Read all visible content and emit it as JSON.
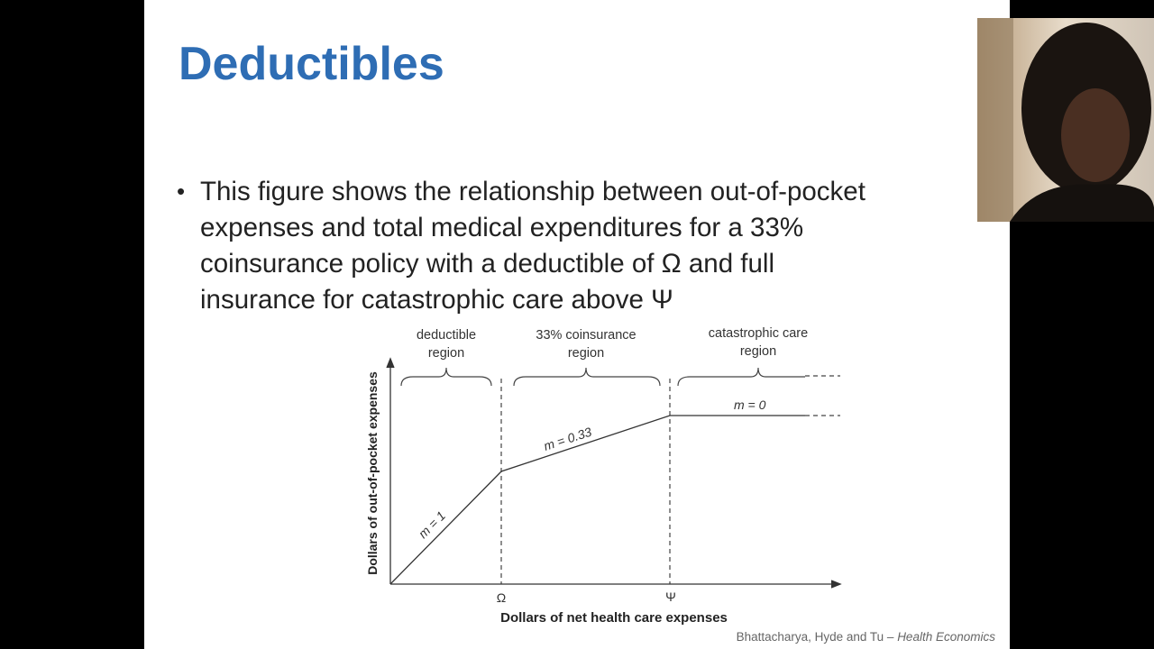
{
  "slide": {
    "title": "Deductibles",
    "bullet": [
      "This figure shows the relationship between out-of-pocket",
      "expenses and total medical expenditures for a 33%",
      "coinsurance policy with a deductible of Ω and full",
      "insurance for catastrophic care above Ψ"
    ],
    "figure": {
      "regions": [
        [
          "deductible",
          "region"
        ],
        [
          "33% coinsurance",
          "region"
        ],
        [
          "catastrophic care",
          "region"
        ]
      ],
      "slopes": [
        "m = 1",
        "m = 0.33",
        "m = 0"
      ],
      "x_markers": [
        "Ω",
        "Ψ"
      ],
      "x_axis_label": "Dollars of net health care expenses",
      "y_axis_label": "Dollars of out-of-pocket expenses"
    },
    "citation": {
      "authors": "Bhattacharya, Hyde and Tu – ",
      "book": "Health Economics"
    }
  }
}
